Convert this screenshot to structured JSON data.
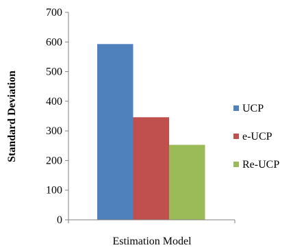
{
  "chart_data": {
    "type": "bar",
    "xlabel": "Estimation Model",
    "ylabel": "Standard Deviation",
    "ylim": [
      0,
      700
    ],
    "yticks": [
      "0",
      "100",
      "200",
      "300",
      "400",
      "500",
      "600",
      "700"
    ],
    "grid": false,
    "legend_position": "right",
    "series": [
      {
        "name": "UCP",
        "value": 593,
        "color": "#4F81BD"
      },
      {
        "name": "e-UCP",
        "value": 346,
        "color": "#C0504D"
      },
      {
        "name": "Re-UCP",
        "value": 253,
        "color": "#9BBB59"
      }
    ]
  }
}
